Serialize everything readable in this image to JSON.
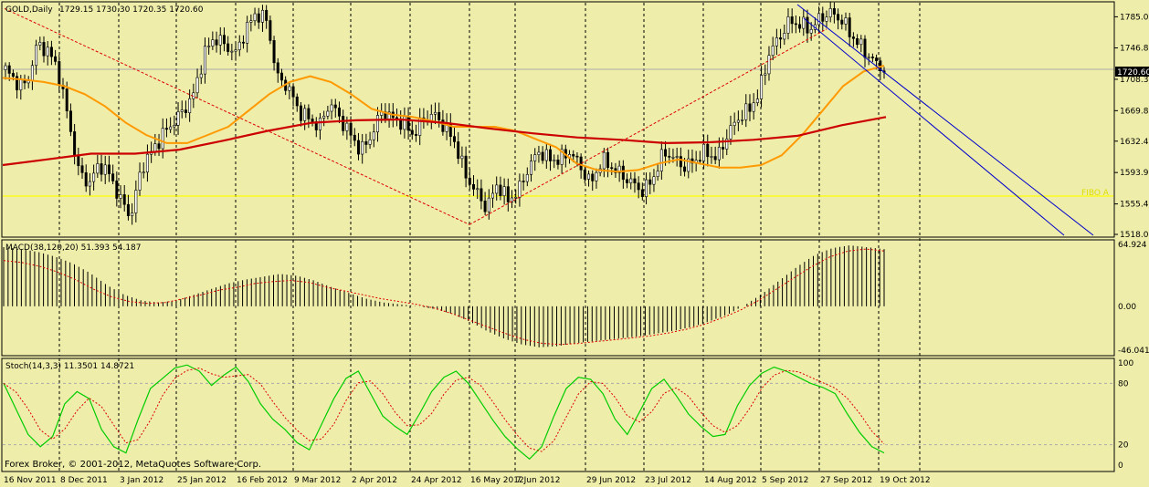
{
  "colors": {
    "background": "#eeeeaa",
    "grid": "#000000",
    "candle": "#000000",
    "ma_fast": "#ff9900",
    "ma_slow": "#cc0000",
    "channel": "#0000cc",
    "support": "#ffff00",
    "trend": "#dd0000",
    "macd_signal": "#dd0000",
    "stoch_main": "#00cc00",
    "stoch_signal": "#dd0000",
    "price_tag_bg": "#000000",
    "price_tag_text": "#ffffff"
  },
  "header": {
    "symbol": "GOLD,Daily",
    "ohlc": "1729.15 1730.30 1720.35 1720.60"
  },
  "price_tag": "1720.60",
  "support_label": "FIBO A",
  "macd_header": "MACD(38,120,20) 51.393 54.187",
  "stoch_header": "Stoch(14,3,3) 11.3501 14.8721",
  "copyright": "Forex Broker, © 2001-2012, MetaQuotes Software Corp.",
  "x_labels": [
    "16 Nov 2011",
    "8 Dec 2011",
    "3 Jan 2012",
    "25 Jan 2012",
    "16 Feb 2012",
    "9 Mar 2012",
    "2 Apr 2012",
    "24 Apr 2012",
    "16 May 2012",
    "7 Jun 2012",
    "29 Jun 2012",
    "23 Jul 2012",
    "14 Aug 2012",
    "5 Sep 2012",
    "27 Sep 2012",
    "19 Oct 2012"
  ],
  "chart_data": [
    {
      "type": "candlestick",
      "title": "GOLD,Daily",
      "y_ticks": [
        "1785.00",
        "1746.80",
        "1708.30",
        "1669.80",
        "1632.40",
        "1593.90",
        "1555.40",
        "1518.00"
      ],
      "ylim": [
        1518,
        1800
      ],
      "support_level": 1565,
      "approx_close": [
        1720,
        1705,
        1700,
        1750,
        1745,
        1720,
        1660,
        1595,
        1580,
        1605,
        1590,
        1560,
        1540,
        1600,
        1620,
        1640,
        1655,
        1670,
        1690,
        1740,
        1760,
        1750,
        1740,
        1770,
        1790,
        1780,
        1710,
        1700,
        1670,
        1660,
        1650,
        1680,
        1660,
        1640,
        1620,
        1640,
        1670,
        1660,
        1655,
        1640,
        1660,
        1665,
        1650,
        1630,
        1590,
        1570,
        1550,
        1580,
        1560,
        1570,
        1600,
        1620,
        1610,
        1610,
        1620,
        1600,
        1580,
        1610,
        1600,
        1590,
        1580,
        1570,
        1590,
        1620,
        1610,
        1600,
        1610,
        1620,
        1610,
        1640,
        1660,
        1670,
        1690,
        1740,
        1760,
        1780,
        1775,
        1770,
        1785,
        1790,
        1780,
        1760,
        1745,
        1730,
        1720
      ],
      "ma_fast": [
        1710,
        1708,
        1705,
        1700,
        1690,
        1675,
        1655,
        1640,
        1630,
        1630,
        1640,
        1650,
        1670,
        1690,
        1705,
        1712,
        1705,
        1690,
        1672,
        1665,
        1662,
        1657,
        1650,
        1650,
        1650,
        1645,
        1635,
        1625,
        1605,
        1597,
        1595,
        1597,
        1605,
        1610,
        1605,
        1600,
        1600,
        1603,
        1615,
        1640,
        1670,
        1700,
        1718,
        1725
      ],
      "ma_slow": [
        1603,
        1610,
        1617,
        1617,
        1622,
        1633,
        1645,
        1655,
        1658,
        1659,
        1655,
        1648,
        1642,
        1637,
        1634,
        1630,
        1631,
        1634,
        1639,
        1652,
        1662
      ],
      "trend_lines": [
        {
          "from": [
            "16 Nov 2011",
            1790
          ],
          "to": [
            "16 May 2012",
            1530
          ]
        },
        {
          "from": [
            "16 May 2012",
            1530
          ],
          "to": [
            "27 Sep 2012",
            1790
          ]
        }
      ],
      "channel": "two parallel blue lines sloping down from the late-September high"
    },
    {
      "type": "bar",
      "title": "MACD(38,120,20) 51.393 54.187",
      "ylim": [
        -46.041,
        64.924
      ],
      "y_ticks": [
        "64.924",
        "0.00",
        "-46.041"
      ],
      "histogram": [
        62,
        60,
        57,
        52,
        45,
        35,
        22,
        12,
        6,
        4,
        6,
        12,
        18,
        24,
        28,
        31,
        34,
        32,
        27,
        20,
        14,
        8,
        4,
        2,
        0,
        -3,
        -8,
        -16,
        -26,
        -34,
        -40,
        -43,
        -42,
        -39,
        -37,
        -35,
        -33,
        -31,
        -28,
        -25,
        -21,
        -15,
        -8,
        2,
        14,
        28,
        42,
        54,
        61,
        64,
        62,
        60
      ],
      "signal": [
        48,
        46,
        42,
        36,
        28,
        18,
        10,
        5,
        3,
        4,
        8,
        12,
        17,
        20,
        24,
        26,
        27,
        25,
        20,
        16,
        12,
        8,
        5,
        2,
        -2,
        -8,
        -15,
        -22,
        -29,
        -35,
        -39,
        -40,
        -39,
        -37,
        -35,
        -33,
        -31,
        -28,
        -24,
        -19,
        -12,
        -4,
        6,
        18,
        30,
        42,
        52,
        58,
        60,
        58
      ]
    },
    {
      "type": "line",
      "title": "Stoch(14,3,3) 11.3501 14.8721",
      "ylim": [
        0,
        100
      ],
      "y_ticks": [
        "100",
        "80",
        "20",
        "0"
      ],
      "series": [
        {
          "name": "main",
          "values": [
            80,
            55,
            30,
            18,
            28,
            60,
            72,
            65,
            35,
            18,
            12,
            45,
            75,
            85,
            95,
            98,
            92,
            78,
            88,
            96,
            82,
            60,
            45,
            35,
            22,
            15,
            40,
            65,
            85,
            92,
            70,
            48,
            38,
            30,
            50,
            72,
            86,
            92,
            80,
            62,
            44,
            28,
            16,
            6,
            18,
            48,
            75,
            86,
            84,
            70,
            45,
            30,
            52,
            75,
            84,
            68,
            50,
            38,
            28,
            30,
            58,
            78,
            90,
            96,
            92,
            86,
            80,
            76,
            70,
            50,
            32,
            18,
            12
          ]
        }
      ]
    }
  ]
}
